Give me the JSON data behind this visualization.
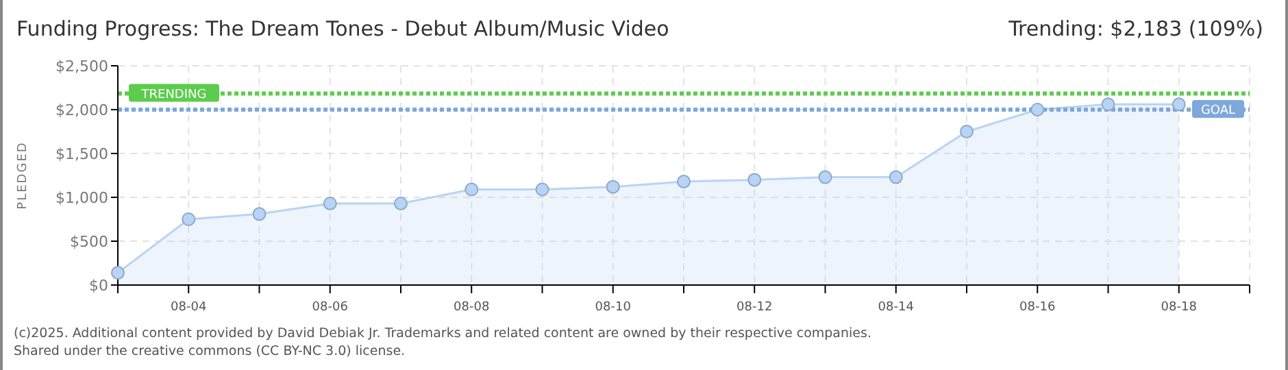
{
  "chart_data": {
    "type": "area",
    "title": "Funding Progress: The Dream Tones - Debut Album/Music Video",
    "subtitle": "Trending: $2,183 (109%)",
    "ylabel": "PLEDGED",
    "categories": [
      null,
      "08-04",
      null,
      "08-06",
      null,
      "08-08",
      null,
      "08-10",
      null,
      "08-12",
      null,
      "08-14",
      null,
      "08-16",
      null,
      "08-18",
      null
    ],
    "series": [
      {
        "color": "#b8d4f4",
        "values": [
          140,
          750,
          810,
          930,
          930,
          1090,
          1090,
          1120,
          1180,
          1200,
          1230,
          1230,
          1750,
          2000,
          2060,
          2060,
          null
        ]
      }
    ],
    "ylim": [
      0,
      2500
    ],
    "yticks": [
      {
        "value": 0,
        "label": "$0"
      },
      {
        "value": 500,
        "label": "$500"
      },
      {
        "value": 1000,
        "label": "$1,000"
      },
      {
        "value": 1500,
        "label": "$1,500"
      },
      {
        "value": 2000,
        "label": "$2,000"
      },
      {
        "value": 2500,
        "label": "$2,500"
      }
    ],
    "ref_lines": [
      {
        "axis": "y",
        "value": 2183,
        "label": "TRENDING",
        "color": "#5ccc4c",
        "line_style": "dotted"
      },
      {
        "axis": "y",
        "value": 2000,
        "label": "GOAL",
        "color": "#7ea8dc",
        "line_style": "dotted"
      }
    ],
    "grid": true,
    "marker": "circle",
    "annotations": [
      "(c)2025. Additional content provided by David Debiak Jr. Trademarks and related content are owned by their respective companies.",
      "Shared under the creative commons (CC BY-NC 3.0) license."
    ]
  }
}
